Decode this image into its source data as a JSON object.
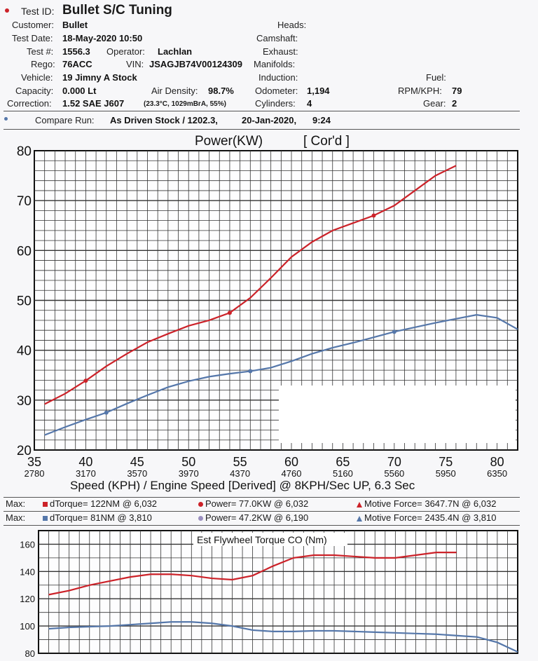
{
  "header": {
    "test_id_label": "Test ID:",
    "test_id": "Bullet S/C Tuning",
    "customer_label": "Customer:",
    "customer": "Bullet",
    "test_date_label": "Test Date:",
    "test_date": "18-May-2020 10:50",
    "test_no_label": "Test #:",
    "test_no": "1556.3",
    "operator_label": "Operator:",
    "operator": "Lachlan",
    "rego_label": "Rego:",
    "rego": "76ACC",
    "vin_label": "VIN:",
    "vin": "JSAGJB74V00124309",
    "vehicle_label": "Vehicle:",
    "vehicle": "19 Jimny A Stock",
    "capacity_label": "Capacity:",
    "capacity": "0.000 Lt",
    "air_density_label": "Air Density:",
    "air_density": "98.7%",
    "correction_label": "Correction:",
    "correction": "1.52 SAE J607",
    "correction_detail": "(23.3°C, 1029mBrA, 55%)",
    "heads_label": "Heads:",
    "camshaft_label": "Camshaft:",
    "exhaust_label": "Exhaust:",
    "manifolds_label": "Manifolds:",
    "induction_label": "Induction:",
    "odometer_label": "Odometer:",
    "odometer": "1,194",
    "cylinders_label": "Cylinders:",
    "cylinders": "4",
    "fuel_label": "Fuel:",
    "rpm_kph_label": "RPM/KPH:",
    "rpm_kph": "79",
    "gear_label": "Gear:",
    "gear": "2",
    "compare_label": "Compare Run:",
    "compare_run": "As Driven Stock / 1202.3,",
    "compare_date": "20-Jan-2020,",
    "compare_time": "9:24"
  },
  "colors": {
    "run": "#cc2229",
    "compare": "#5577aa"
  },
  "chart_data": [
    {
      "type": "line",
      "title": "Power(KW)",
      "title_suffix": "[ Cor'd ]",
      "xlabel": "Speed (KPH) / Engine Speed [Derived] @ 8KPH/Sec UP, 6.3 Sec",
      "x_ticks": [
        "35",
        "40",
        "45",
        "50",
        "55",
        "60",
        "65",
        "70",
        "75",
        "80"
      ],
      "x_secondary_ticks": [
        "2780",
        "3170",
        "3570",
        "3970",
        "4370",
        "4760",
        "5160",
        "5560",
        "5950",
        "6350"
      ],
      "y_ticks": [
        "80",
        "70",
        "60",
        "50",
        "40",
        "30",
        "20"
      ],
      "xlim": [
        35,
        82
      ],
      "ylim": [
        20,
        80
      ],
      "series": [
        {
          "color": "#cc2229",
          "x": [
            36,
            38,
            40,
            42,
            44,
            46,
            48,
            50,
            52,
            54,
            56,
            58,
            60,
            62,
            64,
            66,
            68,
            70,
            72,
            74,
            76
          ],
          "y": [
            29.2,
            31.3,
            33.9,
            36.8,
            39.3,
            41.6,
            43.3,
            44.9,
            46.0,
            47.5,
            50.5,
            54.5,
            58.7,
            61.7,
            64.0,
            65.5,
            67.0,
            69.0,
            72.0,
            75.0,
            77.0
          ],
          "markers_x": [
            40,
            54,
            68
          ]
        },
        {
          "color": "#5577aa",
          "x": [
            36,
            38,
            40,
            42,
            44,
            46,
            48,
            50,
            52,
            54,
            56,
            58,
            60,
            62,
            64,
            66,
            68,
            70,
            72,
            74,
            76,
            78,
            80,
            82
          ],
          "y": [
            23.0,
            24.6,
            26.1,
            27.5,
            29.3,
            31.0,
            32.6,
            33.8,
            34.7,
            35.3,
            35.8,
            36.5,
            37.8,
            39.3,
            40.5,
            41.5,
            42.6,
            43.7,
            44.6,
            45.5,
            46.3,
            47.1,
            46.5,
            44.2
          ],
          "markers_x": [
            42,
            56,
            70
          ]
        }
      ]
    },
    {
      "type": "line",
      "title": "Est Flywheel Torque CO (Nm)",
      "y_ticks": [
        "160",
        "140",
        "120",
        "100",
        "80"
      ],
      "xlim": [
        35,
        82
      ],
      "ylim": [
        80,
        170
      ],
      "series": [
        {
          "color": "#cc2229",
          "x": [
            36,
            38,
            40,
            42,
            44,
            46,
            48,
            50,
            52,
            54,
            56,
            58,
            60,
            62,
            64,
            66,
            68,
            70,
            72,
            74,
            76
          ],
          "y": [
            123,
            126,
            130,
            133,
            136,
            138,
            138,
            137,
            135,
            134,
            137,
            144,
            150,
            152,
            152,
            151,
            150,
            150,
            152,
            154,
            154
          ]
        },
        {
          "color": "#5577aa",
          "x": [
            36,
            38,
            40,
            42,
            44,
            46,
            48,
            50,
            52,
            54,
            56,
            58,
            60,
            62,
            64,
            66,
            68,
            70,
            72,
            74,
            76,
            78,
            80,
            82
          ],
          "y": [
            98,
            99,
            99.5,
            100,
            101,
            102,
            103,
            103,
            102,
            100,
            97,
            96,
            96,
            96.5,
            96.5,
            96,
            95.5,
            95,
            94.5,
            94,
            93,
            92,
            88,
            81
          ]
        }
      ]
    }
  ],
  "max_rows": [
    {
      "label": "Max:",
      "torque": "dTorque= 122NM @ 6,032",
      "power": "Power= 77.0KW @ 6,032",
      "force": "Motive Force= 3647.7N @ 6,032"
    },
    {
      "label": "Max:",
      "torque": "dTorque= 81NM @ 3,810",
      "power": "Power= 47.2KW @ 6,190",
      "force": "Motive Force= 2435.4N @ 3,810"
    }
  ]
}
